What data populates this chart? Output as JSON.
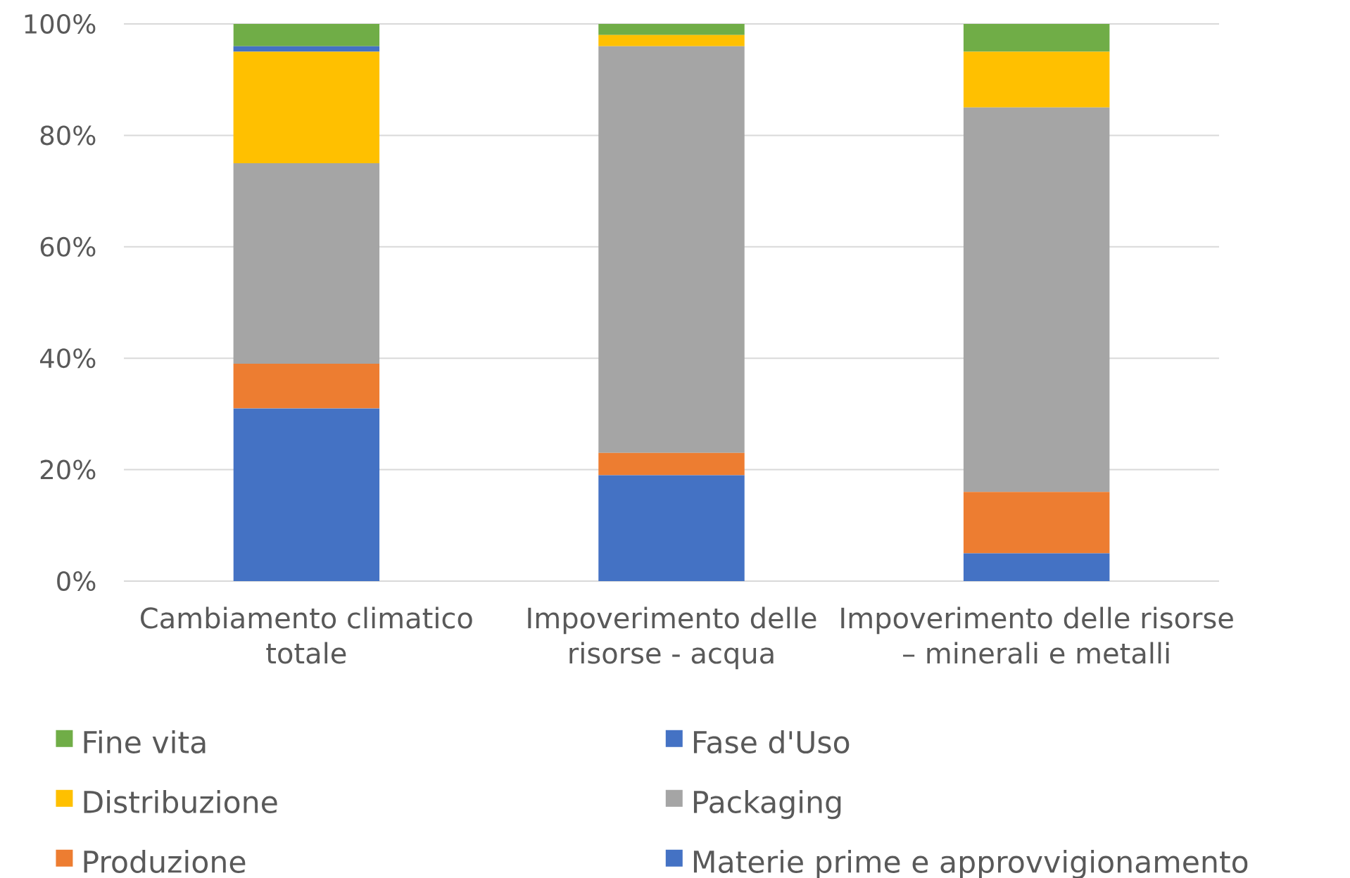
{
  "chart_data": {
    "type": "bar",
    "stacked": true,
    "categories": [
      "Cambiamento climatico totale",
      "Impoverimento delle risorse - acqua",
      "Impoverimento delle risorse – minerali e metalli"
    ],
    "series": [
      {
        "name": "Materie prime e approvvigionamento",
        "color": "#4472c4",
        "values": [
          31,
          19,
          5
        ]
      },
      {
        "name": "Produzione",
        "color": "#ed7d31",
        "values": [
          8,
          4,
          11
        ]
      },
      {
        "name": "Packaging",
        "color": "#a5a5a5",
        "values": [
          36,
          73,
          69
        ]
      },
      {
        "name": "Distribuzione",
        "color": "#ffc000",
        "values": [
          20,
          2,
          10
        ]
      },
      {
        "name": "Fase d'Uso",
        "color": "#4472c4",
        "values": [
          1,
          0,
          0
        ]
      },
      {
        "name": "Fine vita",
        "color": "#70ad47",
        "values": [
          4,
          2,
          5
        ]
      }
    ],
    "ylim": [
      0,
      100
    ],
    "yticks": [
      {
        "value": 0,
        "label": "0%"
      },
      {
        "value": 20,
        "label": "20%"
      },
      {
        "value": 40,
        "label": "40%"
      },
      {
        "value": 60,
        "label": "60%"
      },
      {
        "value": 80,
        "label": "80%"
      },
      {
        "value": 100,
        "label": "100%"
      }
    ],
    "grid": "y",
    "legend": "bottom"
  }
}
